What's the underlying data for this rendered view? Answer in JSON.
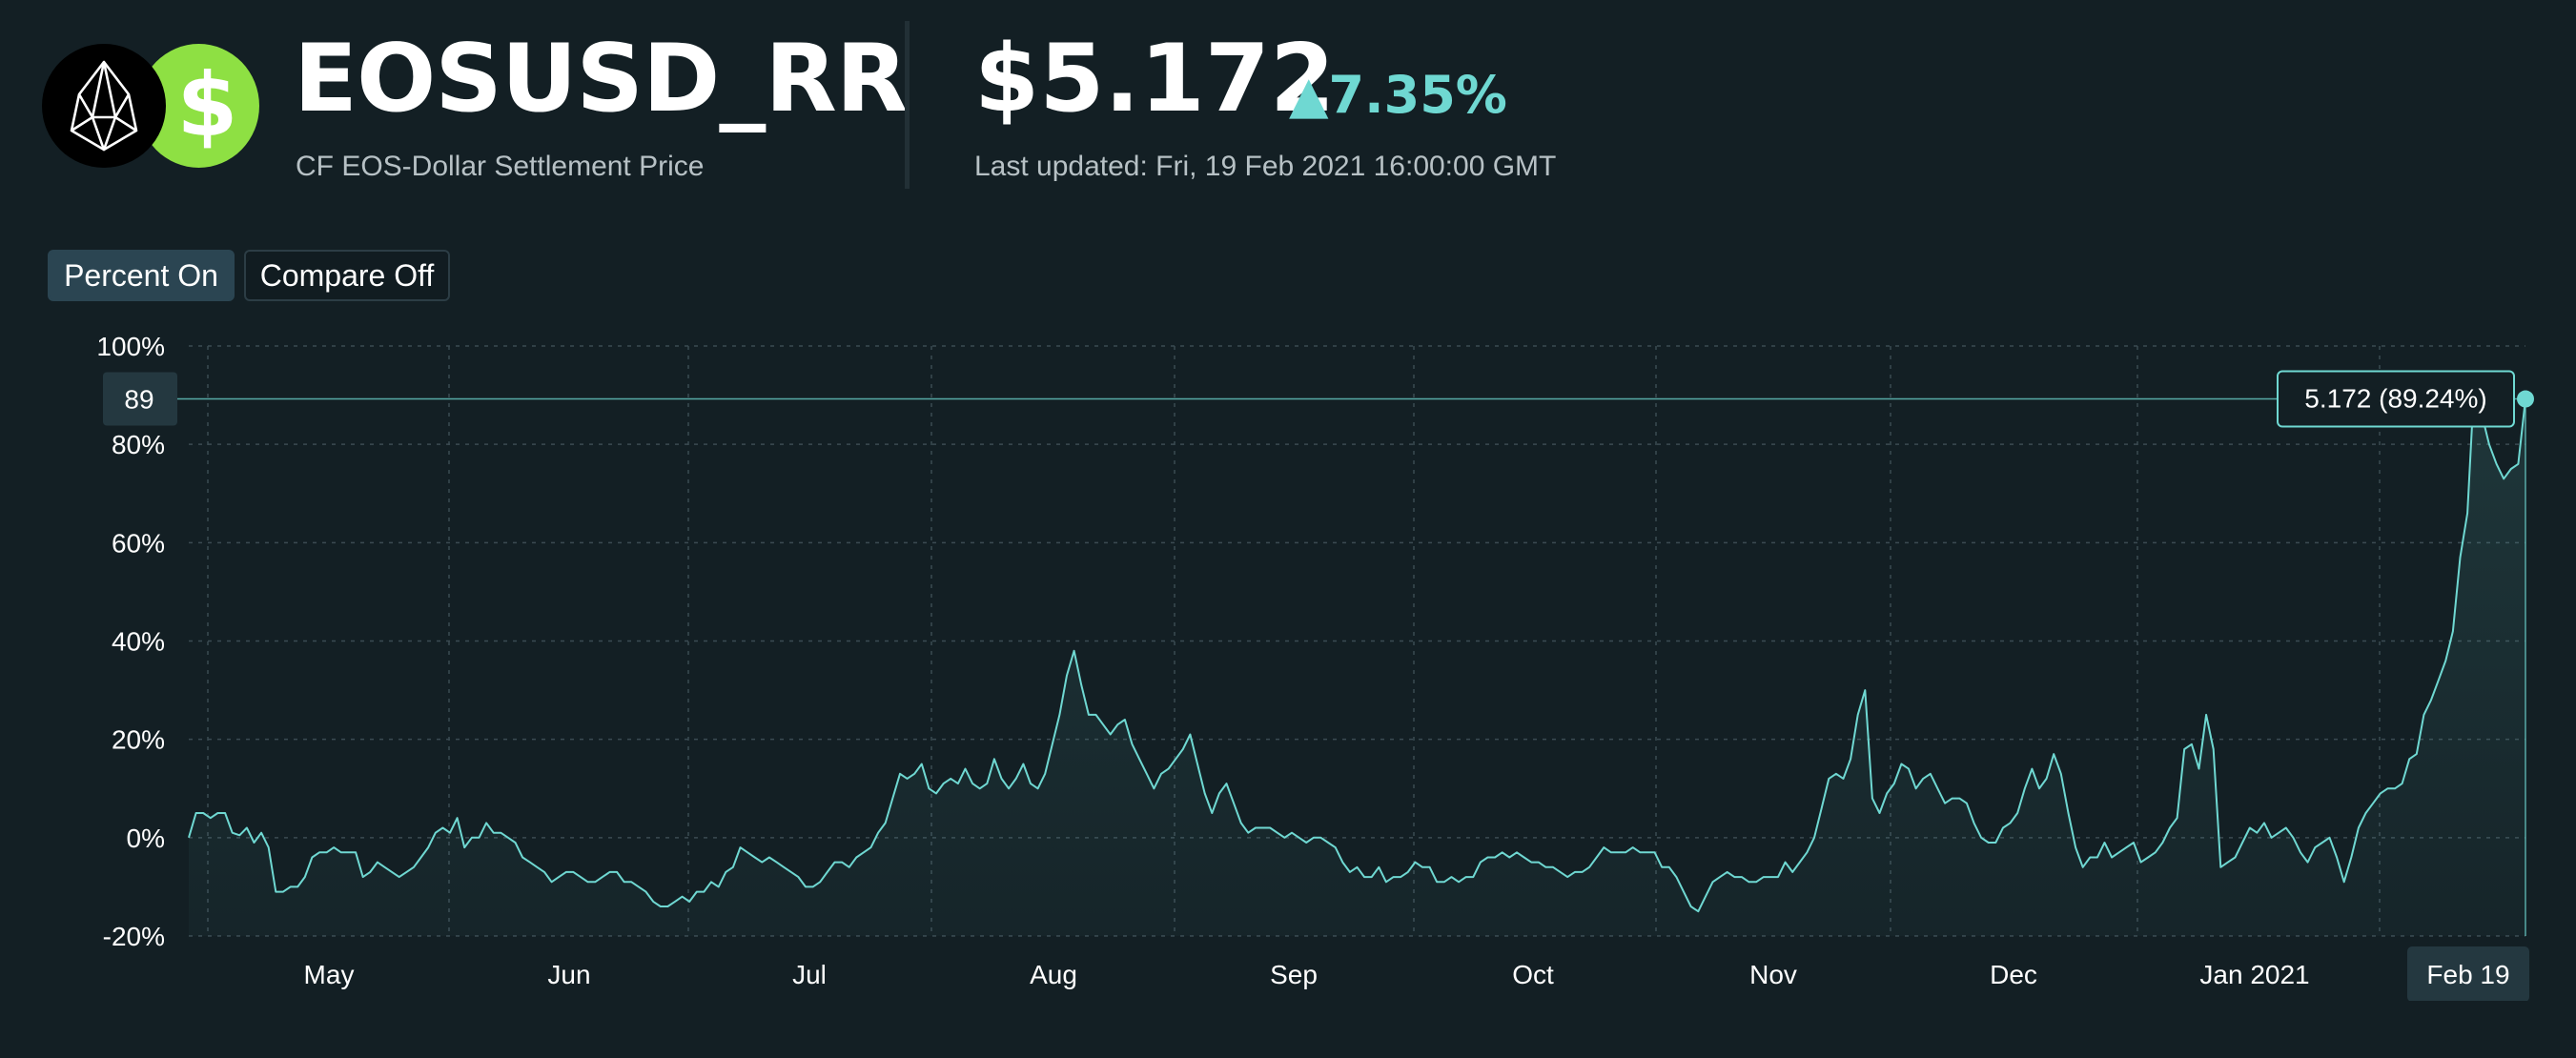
{
  "header": {
    "ticker": "EOSUSD_RR",
    "subtitle": "CF EOS-Dollar Settlement Price",
    "price": "$5.172",
    "change": "▲7.35%",
    "last_updated": "Last updated: Fri, 19 Feb 2021 16:00:00 GMT",
    "base_icon": "eos-logo-icon",
    "quote_icon": "dollar-icon",
    "quote_symbol": "$"
  },
  "controls": {
    "percent_label": "Percent On",
    "compare_label": "Compare Off"
  },
  "colors": {
    "background": "#131f24",
    "line": "#6fd8d2",
    "positive": "#6fd8d2",
    "dollar_logo": "#8ee043",
    "button_active": "#2b4552"
  },
  "chart_data": {
    "type": "line",
    "ylim": [
      -20,
      100
    ],
    "yticks": [
      -20,
      0,
      20,
      40,
      60,
      80,
      100
    ],
    "ytick_labels": [
      "-20%",
      "0%",
      "20%",
      "40%",
      "60%",
      "80%",
      "100%"
    ],
    "xtick_labels": [
      "May",
      "Jun",
      "Jul",
      "Aug",
      "Sep",
      "Oct",
      "Nov",
      "Dec",
      "Jan 2021",
      "Feb 19"
    ],
    "grid": true,
    "crosshair": {
      "y_label": "89",
      "value_label": "5.172 (89.24%)",
      "y": 89.24,
      "x_label": "Feb 19"
    },
    "series": [
      {
        "values": [
          0,
          5,
          5,
          4,
          5,
          5,
          1,
          0.5,
          2,
          -1,
          1,
          -2,
          -11,
          -11,
          -10,
          -10,
          -8,
          -4,
          -3,
          -3,
          -2,
          -3,
          -3,
          -3,
          -8,
          -7,
          -5,
          -6,
          -7,
          -8,
          -7,
          -6,
          -4,
          -2,
          1,
          2,
          1,
          4,
          -2,
          0,
          0,
          3,
          1,
          1,
          0,
          -1,
          -4,
          -5,
          -6,
          -7,
          -9,
          -8,
          -7,
          -7,
          -8,
          -9,
          -9,
          -8,
          -7,
          -7,
          -9,
          -9,
          -10,
          -11,
          -13,
          -14,
          -14,
          -13,
          -12,
          -13,
          -11,
          -11,
          -9,
          -10,
          -7,
          -6,
          -2,
          -3,
          -4,
          -5,
          -4,
          -5,
          -6,
          -7,
          -8,
          -10,
          -10,
          -9,
          -7,
          -5,
          -5,
          -6,
          -4,
          -3,
          -2,
          1,
          3,
          8,
          13,
          12,
          13,
          15,
          10,
          9,
          11,
          12,
          11,
          14,
          11,
          10,
          11,
          16,
          12,
          10,
          12,
          15,
          11,
          10,
          13,
          19,
          25,
          33,
          38,
          31,
          25,
          25,
          23,
          21,
          23,
          24,
          19,
          16,
          13,
          10,
          13,
          14,
          16,
          18,
          21,
          15,
          9,
          5,
          9,
          11,
          7,
          3,
          1,
          2,
          2,
          2,
          1,
          0,
          1,
          0,
          -1,
          0,
          0,
          -1,
          -2,
          -5,
          -7,
          -6,
          -8,
          -8,
          -6,
          -9,
          -8,
          -8,
          -7,
          -5,
          -6,
          -6,
          -9,
          -9,
          -8,
          -9,
          -8,
          -8,
          -5,
          -4,
          -4,
          -3,
          -4,
          -3,
          -4,
          -5,
          -5,
          -6,
          -6,
          -7,
          -8,
          -7,
          -7,
          -6,
          -4,
          -2,
          -3,
          -3,
          -3,
          -2,
          -3,
          -3,
          -3,
          -6,
          -6,
          -8,
          -11,
          -14,
          -15,
          -12,
          -9,
          -8,
          -7,
          -8,
          -8,
          -9,
          -9,
          -8,
          -8,
          -8,
          -5,
          -7,
          -5,
          -3,
          0,
          6,
          12,
          13,
          12,
          16,
          25,
          30,
          8,
          5,
          9,
          11,
          15,
          14,
          10,
          12,
          13,
          10,
          7,
          8,
          8,
          7,
          3,
          0,
          -1,
          -1,
          2,
          3,
          5,
          10,
          14,
          10,
          12,
          17,
          13,
          5,
          -2,
          -6,
          -4,
          -4,
          -1,
          -4,
          -3,
          -2,
          -1,
          -5,
          -4,
          -3,
          -1,
          2,
          4,
          18,
          19,
          14,
          25,
          18,
          -6,
          -5,
          -4,
          -1,
          2,
          1,
          3,
          0,
          1,
          2,
          0,
          -3,
          -5,
          -2,
          -1,
          0,
          -4,
          -9,
          -4,
          2,
          5,
          7,
          9,
          10,
          10,
          11,
          16,
          17,
          25,
          28,
          32,
          36,
          42,
          57,
          66,
          94,
          86,
          80,
          76,
          73,
          75,
          76,
          89.24
        ]
      }
    ]
  }
}
